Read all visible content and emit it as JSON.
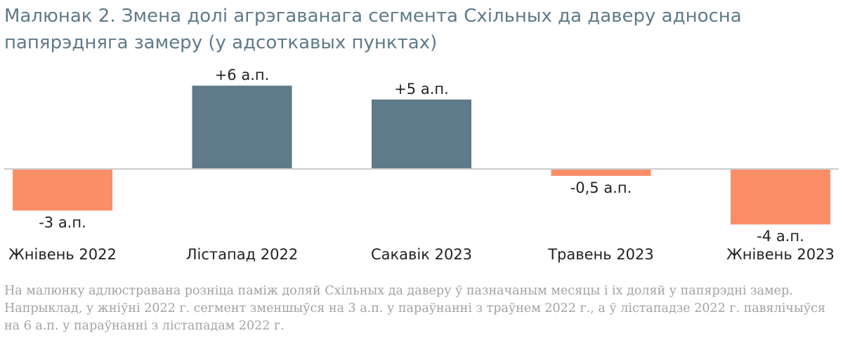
{
  "title": "Малюнак 2. Змена долі агрэгаванага сегмента Схільных да даверу адносна папярэдняга замеру (у адсоткавых пунктах)",
  "note": "На малюнку адлюстравана розніца паміж доляй Схільных да даверу ў пазначаным месяцы і іх доляй у папярэдні замер. Напрыклад, у жніўні 2022 г. сегмент зменшыўся на 3 а.п. у параўнанні з траўнем 2022 г., а ў лістападзе 2022 г. павялічыўся на 6 а.п. у параўнанні з лістападам 2022 г.",
  "colors": {
    "positive": "#5f7a89",
    "negative": "#fc8e67",
    "axis": "#cccccc"
  },
  "chart_data": {
    "type": "bar",
    "title": "Малюнак 2. Змена долі агрэгаванага сегмента Схільных да даверу адносна папярэдняга замеру (у адсоткавых пунктах)",
    "categories": [
      "Жнівень 2022",
      "Лістапад 2022",
      "Сакавік 2023",
      "Травень 2023",
      "Жнівень 2023"
    ],
    "values": [
      -3,
      6,
      5,
      -0.5,
      -4
    ],
    "data_labels": [
      "-3 а.п.",
      "+6 а.п.",
      "+5 а.п.",
      "-0,5 а.п.",
      "-4 а.п."
    ],
    "ylim": [
      -4,
      6
    ],
    "grid": false,
    "xlabel": "",
    "ylabel": ""
  }
}
